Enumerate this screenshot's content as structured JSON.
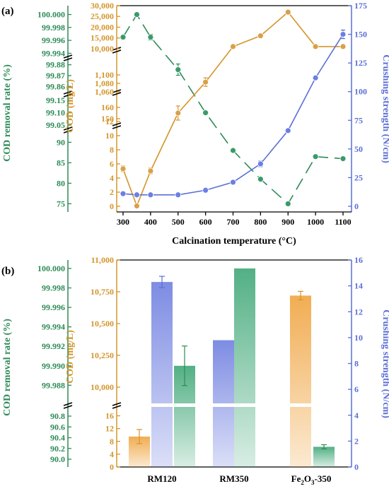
{
  "colors": {
    "green": "#2e8b57",
    "orange": "#d4952a",
    "blue": "#5b6fd6",
    "axis": "#000000"
  },
  "chart_data": [
    {
      "panel_label": "(a)",
      "type": "line",
      "title": "",
      "xlabel": "Calcination temperature (°C)",
      "x": [
        300,
        350,
        400,
        500,
        600,
        700,
        800,
        900,
        1000,
        1100
      ],
      "x_ticks": [
        "300",
        "400",
        "500",
        "600",
        "700",
        "800",
        "900",
        "1000",
        "1100"
      ],
      "axes": {
        "removal_rate": {
          "label": "COD removal rate (%)",
          "ticks": [
            "100.000",
            "99.998",
            "99.996",
            "99.994",
            "99.88",
            "99.87",
            "99.86",
            "99.15",
            "99.10",
            "99.05",
            "90",
            "85",
            "80",
            "75"
          ]
        },
        "cod": {
          "label": "COD (mg/L)",
          "ticks": [
            "30,000",
            "25,000",
            "20,000",
            "15,000",
            "10,000",
            "1,100",
            "1,080",
            "1,060",
            "160",
            "150",
            "12",
            "10",
            "8",
            "6",
            "4",
            "2",
            "0"
          ]
        },
        "strength": {
          "label": "Crushing strength (N/cm)",
          "ticks": [
            "0",
            "25",
            "50",
            "75",
            "100",
            "125",
            "150",
            "175"
          ],
          "range": [
            0,
            175
          ]
        }
      },
      "series": [
        {
          "name": "COD removal rate",
          "axis": "removal_rate",
          "values": [
            99.9965,
            100.0,
            99.9965,
            99.8755,
            99.1,
            88.0,
            81.0,
            75.0,
            86.5,
            86.0
          ]
        },
        {
          "name": "COD",
          "axis": "cod",
          "values": [
            5.3,
            0.05,
            5.0,
            155,
            1083,
            11000,
            16000,
            27000,
            11000,
            11000
          ]
        },
        {
          "name": "Crushing strength",
          "axis": "strength",
          "values": [
            11,
            10,
            10,
            10,
            14,
            21,
            37,
            66,
            112,
            150
          ]
        }
      ]
    },
    {
      "panel_label": "(b)",
      "type": "bar",
      "title": "",
      "xlabel": "",
      "categories": [
        "RM120",
        "RM350",
        "Fe2O3-350"
      ],
      "category_labels": [
        {
          "main": "RM120",
          "sub": ""
        },
        {
          "main": "RM350",
          "sub": ""
        },
        {
          "main": "Fe",
          "sub": "2",
          "mid": "O",
          "sub2": "3",
          "tail": "-350"
        }
      ],
      "axes": {
        "removal_rate": {
          "label": "COD removal rate (%)",
          "ticks": [
            "100.000",
            "99.998",
            "99.996",
            "99.994",
            "99.992",
            "99.990",
            "99.988",
            "90.8",
            "90.6",
            "90.4",
            "90.2",
            "90.0"
          ]
        },
        "cod": {
          "label": "COD (mg/L)",
          "ticks": [
            "11,000",
            "10,750",
            "10,500",
            "10,250",
            "10,000",
            "16",
            "12",
            "8",
            "4",
            "0"
          ]
        },
        "strength": {
          "label": "Crushing strength (N/cm)",
          "ticks": [
            "0",
            "2",
            "4",
            "6",
            "8",
            "10",
            "12",
            "14",
            "16"
          ],
          "range": [
            0,
            16
          ]
        }
      },
      "series": [
        {
          "name": "COD",
          "axis": "cod",
          "values": [
            9.5,
            null,
            10720
          ]
        },
        {
          "name": "Crushing strength",
          "axis": "strength",
          "values": [
            14.3,
            9.8,
            null
          ]
        },
        {
          "name": "COD removal rate",
          "axis": "removal_rate",
          "values": [
            99.99,
            100.0,
            90.23
          ]
        }
      ]
    }
  ]
}
